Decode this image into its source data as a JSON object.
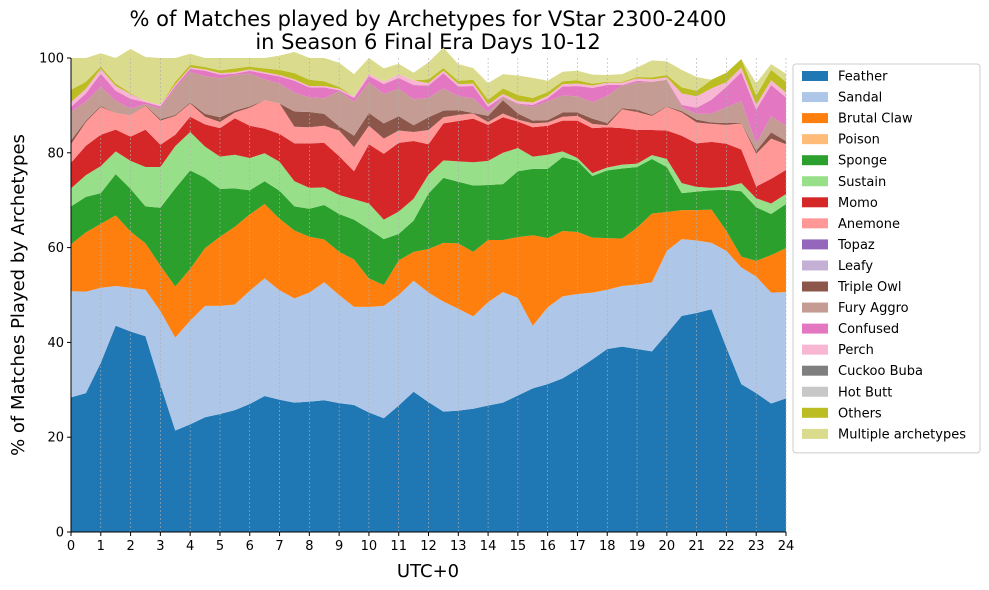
{
  "chart_data": {
    "type": "area",
    "stacked": true,
    "title_line1": "% of Matches played by Archetypes for VStar 2300-2400",
    "title_line2": "in Season 6 Final Era Days 10-12",
    "xlabel": "UTC+0",
    "ylabel": "% of Matches Played by Archetypes",
    "xlim": [
      0,
      24
    ],
    "ylim": [
      0,
      100
    ],
    "x_ticks": [
      "0",
      "1",
      "2",
      "3",
      "4",
      "5",
      "6",
      "7",
      "8",
      "9",
      "10",
      "11",
      "12",
      "13",
      "14",
      "15",
      "16",
      "17",
      "18",
      "19",
      "20",
      "21",
      "22",
      "23",
      "24"
    ],
    "y_ticks": [
      "0",
      "20",
      "40",
      "60",
      "80",
      "100"
    ],
    "grid": "vertical dashed",
    "legend_position": "right",
    "x": [
      0,
      0.5,
      1,
      1.5,
      2,
      2.5,
      3,
      3.5,
      4,
      4.5,
      5,
      5.5,
      6,
      6.5,
      7,
      7.5,
      8,
      8.5,
      9,
      9.5,
      10,
      10.5,
      11,
      11.5,
      12,
      12.5,
      13,
      13.5,
      14,
      14.5,
      15,
      15.5,
      16,
      16.5,
      17,
      17.5,
      18,
      18.5,
      19,
      19.5,
      20,
      20.5,
      21,
      21.5,
      22,
      22.5,
      23,
      23.5,
      24
    ],
    "series": [
      {
        "name": "Feather",
        "color": "#1f77b4",
        "values": [
          28.4,
          29.3,
          35.7,
          43.5,
          42.3,
          41.3,
          31.1,
          21.4,
          22.7,
          24.2,
          24.9,
          25.7,
          27.0,
          28.7,
          27.9,
          27.3,
          27.5,
          27.8,
          27.2,
          26.8,
          25.2,
          24.0,
          26.7,
          29.6,
          27.4,
          25.4,
          25.6,
          26.0,
          26.7,
          27.3,
          28.8,
          30.3,
          31.2,
          32.4,
          34.3,
          36.4,
          38.6,
          39.1,
          38.6,
          38.1,
          41.8,
          45.6,
          46.2,
          47.0,
          38.9,
          31.2,
          29.3,
          27.1,
          28.2
        ]
      },
      {
        "name": "Sandal",
        "color": "#aec7e8",
        "values": [
          22.4,
          21.4,
          15.8,
          8.4,
          9.2,
          9.8,
          15.5,
          19.6,
          21.9,
          23.5,
          22.8,
          22.3,
          23.9,
          24.8,
          23.1,
          22.0,
          23.0,
          24.9,
          22.8,
          20.7,
          22.3,
          23.7,
          23.3,
          23.4,
          23.1,
          23.2,
          21.5,
          19.5,
          21.8,
          23.3,
          20.6,
          13.2,
          16.2,
          17.3,
          15.9,
          14.1,
          12.5,
          12.8,
          13.6,
          14.6,
          17.5,
          16.2,
          15.3,
          14.0,
          20.4,
          24.6,
          24.6,
          23.4,
          22.4
        ]
      },
      {
        "name": "Brutal Claw",
        "color": "#ff7f0e",
        "values": [
          9.9,
          12.5,
          13.5,
          14.9,
          11.9,
          9.8,
          9.6,
          10.8,
          10.9,
          12.2,
          14.6,
          16.4,
          16.1,
          15.7,
          15.1,
          14.3,
          11.8,
          9.0,
          9.1,
          10.0,
          6.0,
          4.4,
          7.3,
          6.1,
          9.2,
          12.4,
          13.8,
          13.6,
          13.1,
          11.0,
          12.8,
          19.1,
          14.6,
          13.8,
          13.1,
          11.6,
          10.9,
          10.0,
          12.0,
          14.5,
          8.2,
          6.1,
          6.4,
          7.0,
          4.2,
          2.3,
          3.3,
          7.9,
          9.3
        ]
      },
      {
        "name": "Poison",
        "color": "#ffbb78",
        "values": [
          0.0,
          0.0,
          0.0,
          0.0,
          0.0,
          0.0,
          0.0,
          0.0,
          0.0,
          0.0,
          0.0,
          0.0,
          0.0,
          0.0,
          0.0,
          0.0,
          0.0,
          0.0,
          0.0,
          0.0,
          0.0,
          0.0,
          0.0,
          0.0,
          0.0,
          0.0,
          0.0,
          0.0,
          0.0,
          0.0,
          0.0,
          0.0,
          0.0,
          0.0,
          0.0,
          0.0,
          0.0,
          0.0,
          0.0,
          0.0,
          0.0,
          0.0,
          0.0,
          0.0,
          0.0,
          0.0,
          0.0,
          0.0,
          0.0
        ]
      },
      {
        "name": "Sponge",
        "color": "#2ca02c",
        "values": [
          8.0,
          7.5,
          6.5,
          8.7,
          9.0,
          7.8,
          12.2,
          20.7,
          20.8,
          14.8,
          10.1,
          8.1,
          5.1,
          4.8,
          5.9,
          5.1,
          5.9,
          7.3,
          8.0,
          8.4,
          10.4,
          9.7,
          5.6,
          6.6,
          11.7,
          13.7,
          13.0,
          14.0,
          11.6,
          11.8,
          13.9,
          14.0,
          14.6,
          15.6,
          15.0,
          13.0,
          14.3,
          14.8,
          12.8,
          11.5,
          9.5,
          3.6,
          3.9,
          4.1,
          8.7,
          13.8,
          11.3,
          8.7,
          9.3
        ]
      },
      {
        "name": "Sustain",
        "color": "#98df8a",
        "values": [
          3.8,
          4.6,
          5.7,
          4.8,
          5.9,
          8.3,
          8.6,
          8.9,
          8.1,
          6.6,
          6.8,
          7.1,
          6.8,
          5.9,
          6.1,
          5.3,
          4.4,
          3.7,
          4.0,
          4.3,
          5.4,
          4.1,
          4.7,
          4.6,
          4.0,
          3.7,
          4.3,
          4.9,
          5.1,
          6.6,
          4.9,
          2.6,
          3.0,
          1.2,
          0.6,
          0.6,
          0.6,
          0.8,
          0.7,
          0.8,
          1.7,
          2.1,
          1.0,
          0.5,
          0.6,
          1.7,
          1.9,
          2.2,
          2.1
        ]
      },
      {
        "name": "Momo",
        "color": "#d62728",
        "values": [
          5.4,
          6.2,
          6.6,
          4.6,
          5.1,
          7.9,
          4.7,
          2.4,
          3.2,
          4.7,
          6.0,
          7.7,
          6.8,
          5.2,
          5.9,
          8.0,
          9.4,
          9.4,
          8.2,
          5.9,
          12.5,
          13.9,
          14.5,
          12.2,
          6.4,
          7.8,
          8.5,
          9.2,
          7.6,
          7.5,
          5.6,
          6.2,
          6.1,
          6.5,
          7.9,
          9.5,
          8.5,
          7.7,
          7.1,
          5.3,
          6.0,
          10.0,
          9.2,
          9.7,
          9.1,
          7.1,
          2.5,
          5.2,
          5.1
        ]
      },
      {
        "name": "Anemone",
        "color": "#ff9896",
        "values": [
          3.9,
          5.0,
          5.9,
          3.5,
          4.5,
          5.0,
          5.1,
          4.0,
          2.8,
          1.6,
          1.3,
          1.2,
          3.8,
          6.0,
          6.4,
          3.5,
          3.4,
          3.6,
          5.4,
          5.1,
          3.9,
          3.2,
          2.6,
          1.9,
          3.0,
          1.3,
          1.3,
          1.1,
          0.6,
          0.8,
          0.4,
          0.8,
          0.7,
          0.8,
          1.0,
          0.9,
          0.4,
          4.0,
          3.8,
          3.0,
          5.0,
          4.9,
          4.4,
          3.8,
          4.0,
          5.5,
          6.9,
          8.5,
          5.4
        ]
      },
      {
        "name": "Topaz",
        "color": "#9467bd",
        "values": [
          0.0,
          0.0,
          0.0,
          0.0,
          0.0,
          0.0,
          0.0,
          0.0,
          0.0,
          0.0,
          0.0,
          0.0,
          0.0,
          0.0,
          0.0,
          0.0,
          0.0,
          0.0,
          0.0,
          0.0,
          0.0,
          0.0,
          0.0,
          0.0,
          0.0,
          0.0,
          0.0,
          0.0,
          0.0,
          0.0,
          0.0,
          0.0,
          0.0,
          0.0,
          0.0,
          0.0,
          0.0,
          0.0,
          0.0,
          0.0,
          0.0,
          0.0,
          0.0,
          0.0,
          0.0,
          0.0,
          0.0,
          0.0,
          0.0
        ]
      },
      {
        "name": "Leafy",
        "color": "#c5b0d5",
        "values": [
          0.0,
          0.0,
          0.0,
          0.0,
          0.0,
          0.0,
          0.0,
          0.0,
          0.0,
          0.0,
          0.0,
          0.0,
          0.0,
          0.0,
          0.0,
          0.0,
          0.0,
          0.0,
          0.0,
          0.0,
          0.0,
          0.0,
          0.0,
          0.0,
          0.0,
          0.0,
          0.0,
          0.0,
          0.0,
          0.0,
          0.0,
          0.0,
          0.0,
          0.0,
          0.0,
          0.0,
          0.0,
          0.0,
          0.0,
          0.0,
          0.0,
          0.0,
          0.0,
          0.0,
          0.0,
          0.0,
          0.0,
          0.0,
          0.0
        ]
      },
      {
        "name": "Triple Owl",
        "color": "#8c564b",
        "values": [
          0.8,
          0.3,
          0.2,
          0.0,
          0.0,
          0.1,
          0.3,
          0.2,
          0.2,
          0.6,
          1.0,
          0.4,
          0.3,
          0.0,
          0.0,
          3.2,
          3.2,
          2.5,
          0.9,
          2.4,
          2.7,
          3.2,
          3.0,
          1.4,
          2.7,
          1.4,
          1.0,
          0.1,
          1.3,
          2.8,
          1.3,
          0.6,
          0.5,
          0.9,
          0.7,
          1.1,
          0.5,
          0.2,
          0.5,
          0.2,
          0.1,
          0.3,
          0.6,
          0.3,
          0.4,
          0.1,
          0.6,
          1.3,
          0.7
        ]
      },
      {
        "name": "Fury Aggro",
        "color": "#c49c94",
        "values": [
          6.0,
          4.0,
          4.0,
          2.6,
          1.4,
          0.3,
          2.2,
          5.7,
          6.4,
          8.0,
          8.2,
          7.5,
          6.9,
          4.4,
          4.2,
          4.0,
          3.1,
          3.3,
          7.4,
          7.2,
          6.4,
          6.2,
          5.8,
          5.5,
          4.1,
          4.7,
          2.9,
          3.1,
          0.7,
          0.7,
          2.0,
          2.9,
          4.0,
          3.6,
          3.4,
          3.5,
          5.7,
          4.8,
          5.7,
          7.0,
          5.6,
          0.8,
          1.2,
          1.9,
          3.3,
          4.6,
          1.5,
          3.4,
          3.2
        ]
      },
      {
        "name": "Confused",
        "color": "#e377c2",
        "values": [
          1.1,
          1.7,
          2.8,
          2.1,
          2.1,
          0.4,
          0.5,
          0.4,
          0.7,
          1.1,
          0.8,
          0.3,
          0.6,
          1.2,
          1.5,
          2.5,
          2.1,
          2.3,
          0.2,
          0.8,
          1.4,
          2.1,
          2.3,
          3.0,
          2.6,
          3.2,
          2.1,
          2.6,
          1.2,
          0.1,
          0.1,
          0.4,
          0.6,
          1.9,
          2.2,
          3.0,
          2.3,
          0.1,
          0.4,
          0.0,
          0.0,
          0.5,
          1.3,
          2.9,
          4.3,
          6.1,
          7.2,
          6.6,
          6.0
        ]
      },
      {
        "name": "Perch",
        "color": "#f7b6d2",
        "values": [
          1.0,
          1.0,
          1.0,
          1.0,
          1.0,
          0.2,
          0.3,
          0.3,
          0.3,
          0.3,
          0.3,
          0.3,
          0.3,
          0.3,
          0.3,
          0.3,
          0.3,
          0.3,
          0.3,
          0.3,
          0.5,
          0.5,
          0.8,
          1.0,
          0.5,
          0.5,
          0.5,
          0.5,
          0.5,
          0.5,
          0.5,
          0.5,
          0.5,
          0.5,
          0.5,
          0.5,
          0.5,
          0.5,
          0.5,
          0.5,
          0.5,
          2.4,
          2.4,
          2.4,
          1.0,
          1.0,
          1.0,
          1.0,
          1.0
        ]
      },
      {
        "name": "Cuckoo Buba",
        "color": "#7f7f7f",
        "values": [
          0.0,
          0.0,
          0.0,
          0.0,
          0.0,
          0.0,
          0.0,
          0.0,
          0.0,
          0.0,
          0.0,
          0.0,
          0.0,
          0.0,
          0.0,
          0.0,
          0.0,
          0.0,
          0.0,
          0.0,
          0.0,
          0.0,
          0.0,
          0.0,
          0.0,
          0.0,
          0.0,
          0.0,
          0.0,
          0.0,
          0.0,
          0.0,
          0.0,
          0.0,
          0.0,
          0.0,
          0.0,
          0.0,
          0.0,
          0.0,
          0.0,
          0.0,
          0.0,
          0.0,
          0.0,
          0.0,
          0.0,
          0.0,
          0.0
        ]
      },
      {
        "name": "Hot Butt",
        "color": "#c7c7c7",
        "values": [
          0.0,
          0.0,
          0.0,
          0.0,
          0.0,
          0.0,
          0.0,
          0.0,
          0.0,
          0.0,
          0.0,
          0.0,
          0.0,
          0.0,
          0.0,
          0.0,
          0.0,
          0.0,
          0.0,
          0.0,
          0.0,
          0.0,
          0.0,
          0.0,
          0.0,
          0.0,
          0.0,
          0.0,
          0.0,
          0.0,
          0.0,
          0.0,
          0.0,
          0.0,
          0.0,
          0.0,
          0.0,
          0.0,
          0.0,
          0.0,
          0.0,
          0.0,
          0.0,
          0.0,
          0.0,
          0.0,
          0.0,
          0.0,
          0.0
        ]
      },
      {
        "name": "Others",
        "color": "#bcbd22",
        "values": [
          2.6,
          1.5,
          0.5,
          0.5,
          0.2,
          0.0,
          0.0,
          0.6,
          0.6,
          0.5,
          0.6,
          0.8,
          0.6,
          0.8,
          1.1,
          1.3,
          1.3,
          1.0,
          0.4,
          0.0,
          0.0,
          0.0,
          0.0,
          0.0,
          0.8,
          0.6,
          0.7,
          0.8,
          1.0,
          1.2,
          1.3,
          1.0,
          0.8,
          0.6,
          0.7,
          0.4,
          0.2,
          0.2,
          0.3,
          0.4,
          0.5,
          1.3,
          1.2,
          1.8,
          2.0,
          1.8,
          2.0,
          2.2,
          2.3
        ]
      },
      {
        "name": "Multiple archetypes",
        "color": "#dbdb8d",
        "values": [
          6.7,
          5.0,
          2.8,
          5.4,
          9.3,
          9.3,
          9.9,
          5.0,
          2.3,
          1.9,
          2.6,
          2.2,
          1.8,
          2.2,
          3.0,
          4.5,
          4.6,
          4.9,
          5.1,
          4.7,
          3.3,
          2.8,
          2.2,
          1.6,
          3.6,
          4.3,
          3.5,
          2.5,
          3.5,
          3.0,
          4.1,
          4.2,
          2.4,
          2.0,
          2.0,
          1.9,
          1.4,
          1.6,
          2.0,
          3.6,
          2.9,
          3.7,
          2.9,
          0.0,
          0.0,
          0.0,
          2.6,
          1.2,
          1.7
        ]
      }
    ]
  }
}
